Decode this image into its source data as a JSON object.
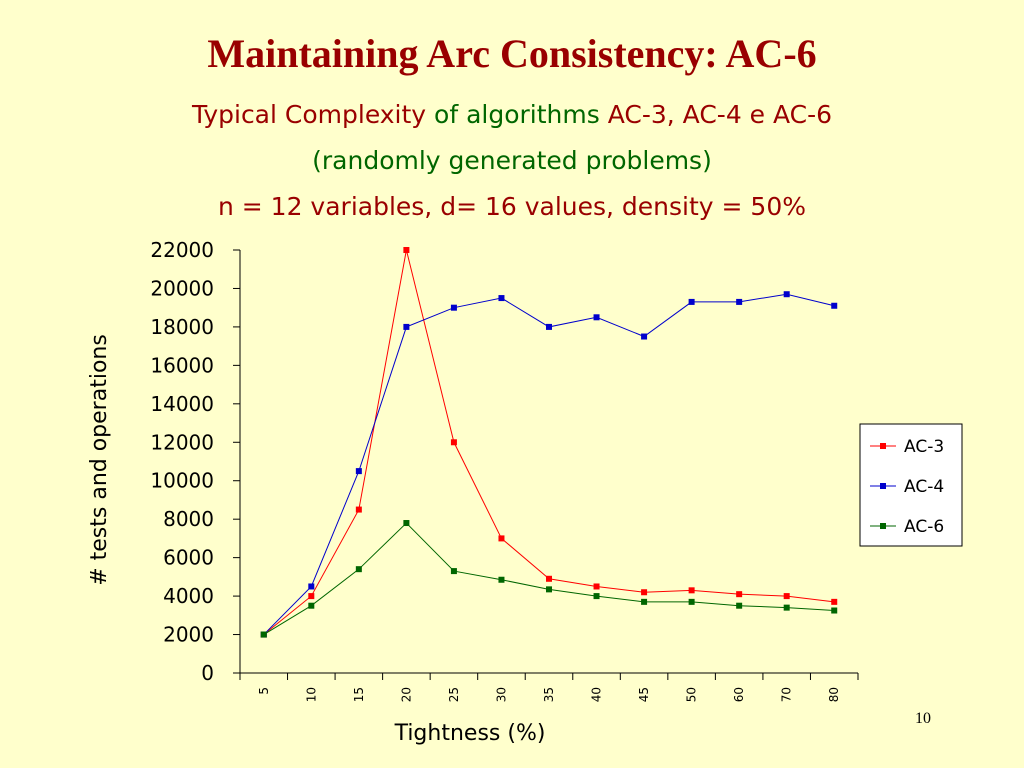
{
  "slide": {
    "title": "Maintaining Arc Consistency: AC-6",
    "subtitle_line1_red": "Typical Complexity",
    "subtitle_line1_green": " of algorithms ",
    "subtitle_line1_red2": "AC-3, AC-4 e AC-6",
    "subtitle_line2": "(randomly generated problems)",
    "subtitle_line3": "n = 12 variables,  d= 16 values, density =  50%",
    "page_number": "10"
  },
  "colors": {
    "background": "#ffffcc",
    "title": "#990000",
    "green_text": "#006600",
    "ac3": "#ff0000",
    "ac4": "#0000cc",
    "ac6": "#006600"
  },
  "chart_data": {
    "type": "line",
    "xlabel": "Tightness (%)",
    "ylabel": "# tests and operations",
    "categories": [
      "5",
      "10",
      "15",
      "20",
      "25",
      "30",
      "35",
      "40",
      "45",
      "50",
      "60",
      "70",
      "80"
    ],
    "ylim": [
      0,
      22000
    ],
    "yticks": [
      0,
      2000,
      4000,
      6000,
      8000,
      10000,
      12000,
      14000,
      16000,
      18000,
      20000,
      22000
    ],
    "grid": false,
    "legend_position": "right",
    "series": [
      {
        "name": "AC-3",
        "color": "#ff0000",
        "values": [
          2000,
          4000,
          8500,
          22000,
          12000,
          7000,
          4900,
          4500,
          4200,
          4300,
          4100,
          4000,
          3700
        ]
      },
      {
        "name": "AC-4",
        "color": "#0000cc",
        "values": [
          2000,
          4500,
          10500,
          18000,
          19000,
          19500,
          18000,
          18500,
          17500,
          19300,
          19300,
          19700,
          19100
        ]
      },
      {
        "name": "AC-6",
        "color": "#006600",
        "values": [
          2000,
          3500,
          5400,
          7800,
          5300,
          4850,
          4350,
          4000,
          3700,
          3700,
          3500,
          3400,
          3250
        ]
      }
    ]
  }
}
